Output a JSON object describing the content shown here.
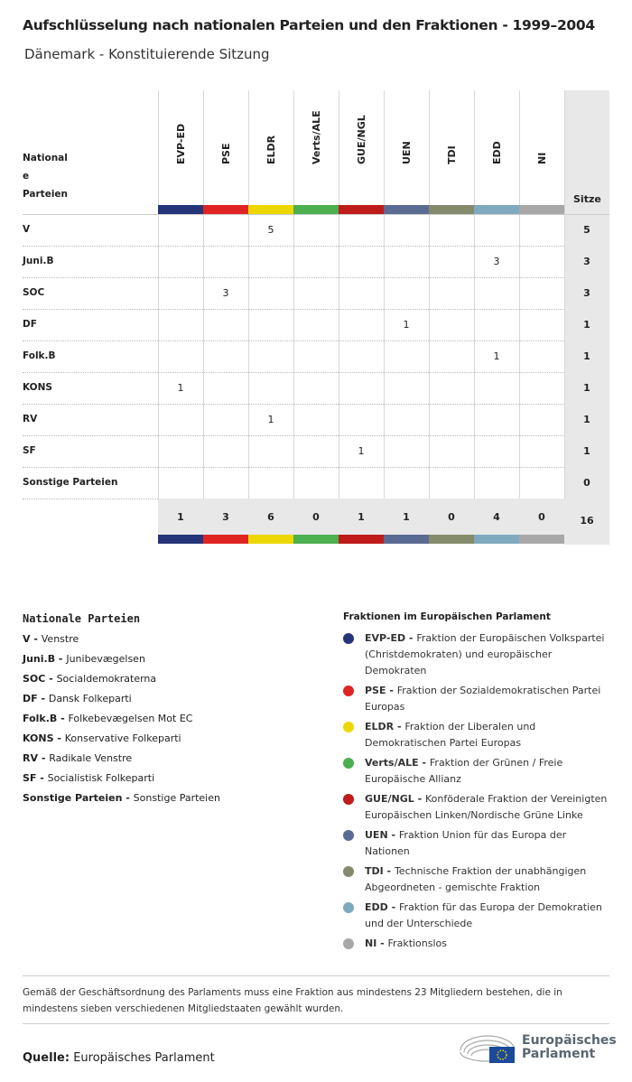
{
  "title": "Aufschlüsselung nach nationalen Parteien und den Fraktionen - 1999–2004",
  "subtitle": "Dänemark - Konstituierende Sitzung",
  "table": {
    "row_header": [
      "National",
      "e",
      "Parteien"
    ],
    "sitze_label": "Sitze",
    "groups": [
      {
        "name": "EVP-ED",
        "color": "#263479"
      },
      {
        "name": "PSE",
        "color": "#e02424"
      },
      {
        "name": "ELDR",
        "color": "#ecd800"
      },
      {
        "name": "Verts/ALE",
        "color": "#4caf50"
      },
      {
        "name": "GUE/NGL",
        "color": "#bf1b1b"
      },
      {
        "name": "UEN",
        "color": "#5a6b93"
      },
      {
        "name": "TDI",
        "color": "#848b6b"
      },
      {
        "name": "EDD",
        "color": "#7fa9be"
      },
      {
        "name": "NI",
        "color": "#a8a8a8"
      }
    ],
    "rows": [
      {
        "party": "V",
        "values": [
          "",
          "",
          "5",
          "",
          "",
          "",
          "",
          "",
          ""
        ],
        "total": "5"
      },
      {
        "party": "Juni.B",
        "values": [
          "",
          "",
          "",
          "",
          "",
          "",
          "",
          "3",
          ""
        ],
        "total": "3"
      },
      {
        "party": "SOC",
        "values": [
          "",
          "3",
          "",
          "",
          "",
          "",
          "",
          "",
          ""
        ],
        "total": "3"
      },
      {
        "party": "DF",
        "values": [
          "",
          "",
          "",
          "",
          "",
          "1",
          "",
          "",
          ""
        ],
        "total": "1"
      },
      {
        "party": "Folk.B",
        "values": [
          "",
          "",
          "",
          "",
          "",
          "",
          "",
          "1",
          ""
        ],
        "total": "1"
      },
      {
        "party": "KONS",
        "values": [
          "1",
          "",
          "",
          "",
          "",
          "",
          "",
          "",
          ""
        ],
        "total": "1"
      },
      {
        "party": "RV",
        "values": [
          "",
          "",
          "1",
          "",
          "",
          "",
          "",
          "",
          ""
        ],
        "total": "1"
      },
      {
        "party": "SF",
        "values": [
          "",
          "",
          "",
          "",
          "1",
          "",
          "",
          "",
          ""
        ],
        "total": "1"
      },
      {
        "party": "Sonstige Parteien",
        "values": [
          "",
          "",
          "",
          "",
          "",
          "",
          "",
          "",
          ""
        ],
        "total": "0"
      }
    ],
    "totals": [
      "1",
      "3",
      "6",
      "0",
      "1",
      "1",
      "0",
      "4",
      "0"
    ],
    "grand_total": "16"
  },
  "legend_national": {
    "title": "Nationale Parteien",
    "items": [
      {
        "abbr": "V - ",
        "name": "Venstre"
      },
      {
        "abbr": "Juni.B - ",
        "name": "Junibevægelsen"
      },
      {
        "abbr": "SOC - ",
        "name": "Socialdemokraterna"
      },
      {
        "abbr": "DF - ",
        "name": "Dansk Folkeparti"
      },
      {
        "abbr": "Folk.B - ",
        "name": "Folkebevægelsen Mot EC"
      },
      {
        "abbr": "KONS - ",
        "name": "Konservative Folkeparti"
      },
      {
        "abbr": "RV - ",
        "name": "Radikale Venstre"
      },
      {
        "abbr": "SF - ",
        "name": "Socialistisk Folkeparti"
      },
      {
        "abbr": "Sonstige Parteien - ",
        "name": "Sonstige Parteien"
      }
    ]
  },
  "legend_groups": {
    "title": "Fraktionen im Europäischen Parlament",
    "items": [
      {
        "abbr": "EVP-ED - ",
        "name": "Fraktion der Europäischen Volkspartei (Christdemokraten) und europäischer Demokraten"
      },
      {
        "abbr": "PSE - ",
        "name": "Fraktion der Sozialdemokratischen Partei Europas"
      },
      {
        "abbr": "ELDR - ",
        "name": "Fraktion der Liberalen und Demokratischen Partei Europas"
      },
      {
        "abbr": "Verts/ALE - ",
        "name": "Fraktion der Grünen / Freie Europäische Allianz"
      },
      {
        "abbr": "GUE/NGL - ",
        "name": "Konföderale Fraktion der Vereinigten Europäischen Linken/Nordische Grüne Linke"
      },
      {
        "abbr": "UEN - ",
        "name": "Fraktion Union für das Europa der Nationen"
      },
      {
        "abbr": "TDI - ",
        "name": "Technische Fraktion der unabhängigen Abgeordneten - gemischte Fraktion"
      },
      {
        "abbr": "EDD - ",
        "name": "Fraktion für das Europa der Demokratien und der Unterschiede"
      },
      {
        "abbr": "NI - ",
        "name": "Fraktionslos"
      }
    ]
  },
  "note": "Gemäß der Geschäftsordnung des Parlaments muss eine Fraktion aus mindestens 23 Mitgliedern bestehen, die in mindestens sieben verschiedenen Mitgliedstaaten gewählt wurden.",
  "source": {
    "label": "Quelle:",
    "value": " Europäisches Parlament"
  },
  "logo": {
    "line1": "Europäisches",
    "line2": "Parlament"
  }
}
